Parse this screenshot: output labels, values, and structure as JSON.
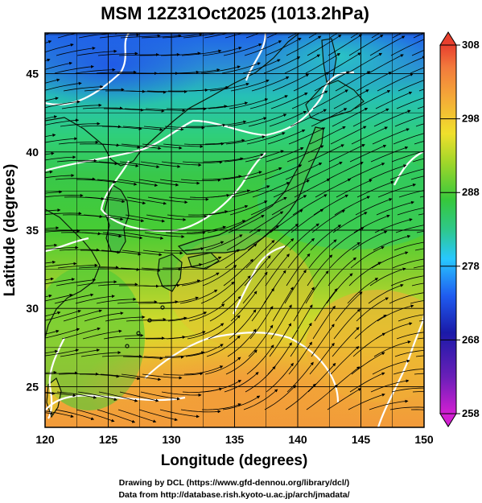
{
  "title": "MSM 12Z31Oct2025 (1013.2hPa)",
  "xlabel": "Longitude (degrees)",
  "ylabel": "Latitude  (degrees)",
  "x_ticks": [
    "120",
    "125",
    "130",
    "135",
    "140",
    "145",
    "150"
  ],
  "y_ticks": [
    "25",
    "30",
    "35",
    "40",
    "45"
  ],
  "x_range": [
    120,
    150
  ],
  "y_range": [
    22.4,
    47.6
  ],
  "colorbar": {
    "ticks": [
      "308",
      "298",
      "288",
      "278",
      "268",
      "258"
    ],
    "range": [
      258,
      308
    ],
    "colors": [
      "#d21fd2",
      "#1a1aa8",
      "#1f5cf0",
      "#28c8ff",
      "#2ec88a",
      "#36c83c",
      "#9fd62a",
      "#f0e02c",
      "#f4a838",
      "#f27a3c",
      "#e8402e"
    ]
  },
  "credits": {
    "line1": "Drawing by DCL (https://www.gfd-dennou.org/library/dcl/)",
    "line2": "Data from http://database.rish.kyoto-u.ac.jp/arch/jmadata/"
  }
}
